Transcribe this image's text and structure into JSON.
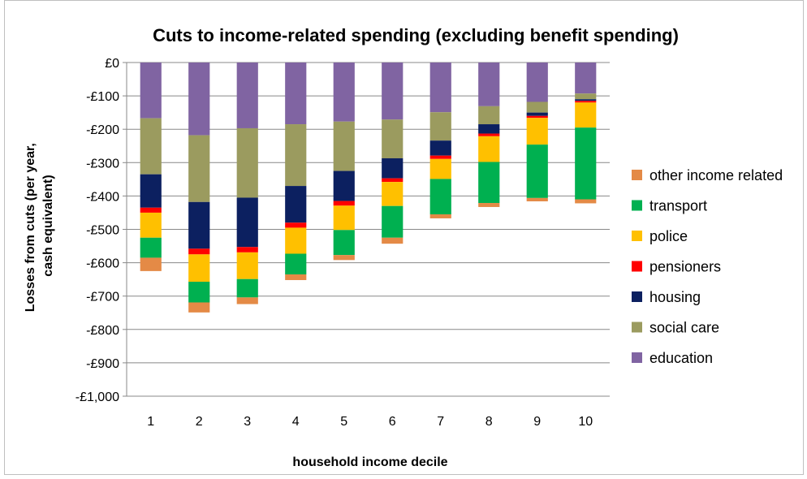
{
  "chart_data": {
    "type": "bar",
    "stacked": true,
    "title": "Cuts to income-related spending (excluding benefit spending)",
    "xlabel": "household income decile",
    "ylabel": "Losses from cuts (per year, cash equivalent)",
    "ylim": [
      -1000,
      0
    ],
    "yticks": [
      0,
      -100,
      -200,
      -300,
      -400,
      -500,
      -600,
      -700,
      -800,
      -900,
      -1000
    ],
    "ytick_labels": [
      "£0",
      "-£100",
      "-£200",
      "-£300",
      "-£400",
      "-£500",
      "-£600",
      "-£700",
      "-£800",
      "-£900",
      "-£1,000"
    ],
    "categories": [
      "1",
      "2",
      "3",
      "4",
      "5",
      "6",
      "7",
      "8",
      "9",
      "10"
    ],
    "grid": true,
    "legend_position": "right",
    "series": [
      {
        "name": "education",
        "color": "#8064a2",
        "values": [
          -167,
          -218,
          -197,
          -185,
          -177,
          -171,
          -149,
          -131,
          -118,
          -93
        ]
      },
      {
        "name": "social care",
        "color": "#9b9b5f",
        "values": [
          -168,
          -200,
          -208,
          -185,
          -148,
          -116,
          -85,
          -54,
          -32,
          -17
        ]
      },
      {
        "name": "housing",
        "color": "#0c2060",
        "values": [
          -100,
          -140,
          -148,
          -110,
          -90,
          -60,
          -45,
          -28,
          -10,
          -5
        ]
      },
      {
        "name": "pensioners",
        "color": "#ff0000",
        "values": [
          -15,
          -17,
          -16,
          -15,
          -14,
          -11,
          -10,
          -8,
          -6,
          -5
        ]
      },
      {
        "name": "police",
        "color": "#ffc000",
        "values": [
          -75,
          -82,
          -80,
          -78,
          -73,
          -72,
          -60,
          -77,
          -80,
          -75
        ]
      },
      {
        "name": "transport",
        "color": "#00b050",
        "values": [
          -60,
          -62,
          -55,
          -62,
          -75,
          -95,
          -106,
          -123,
          -160,
          -215
        ]
      },
      {
        "name": "other income related",
        "color": "#e48a46",
        "values": [
          -40,
          -30,
          -20,
          -17,
          -15,
          -18,
          -12,
          -12,
          -10,
          -12
        ]
      }
    ],
    "legend_order": [
      "other income related",
      "transport",
      "police",
      "pensioners",
      "housing",
      "social care",
      "education"
    ]
  }
}
